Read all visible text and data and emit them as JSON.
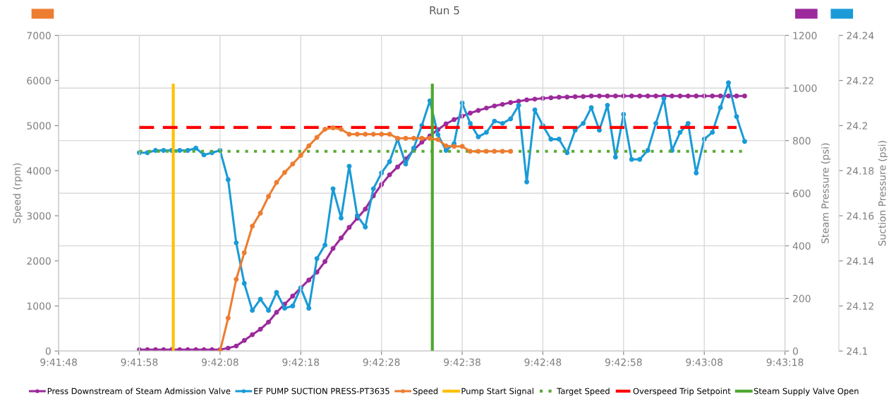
{
  "chart_data": {
    "type": "line",
    "title": "Run 5",
    "ylabel": "Speed (rpm)",
    "y2label": "Steam Pressure (psi)",
    "y3label": "Suction Pressure (psi)",
    "xlim": [
      9.696667,
      9.721667
    ],
    "xticks": [
      {
        "value": 9.696667,
        "label": "9:41:48"
      },
      {
        "value": 9.699444,
        "label": "9:41:58"
      },
      {
        "value": 9.702222,
        "label": "9:42:08"
      },
      {
        "value": 9.705,
        "label": "9:42:18"
      },
      {
        "value": 9.707778,
        "label": "9:42:28"
      },
      {
        "value": 9.710556,
        "label": "9:42:38"
      },
      {
        "value": 9.713333,
        "label": "9:42:48"
      },
      {
        "value": 9.716111,
        "label": "9:42:58"
      },
      {
        "value": 9.718889,
        "label": "9:43:08"
      },
      {
        "value": 9.721667,
        "label": "9:43:18"
      }
    ],
    "ylim": [
      0,
      7000
    ],
    "yticks": [
      0,
      1000,
      2000,
      3000,
      4000,
      5000,
      6000,
      7000
    ],
    "y2lim": [
      0,
      1200
    ],
    "y2ticks": [
      0,
      200,
      400,
      600,
      800,
      1000,
      1200
    ],
    "y3lim": [
      24.1,
      24.24
    ],
    "y3ticks": [
      24.1,
      24.12,
      24.14,
      24.16,
      24.18,
      24.2,
      24.22,
      24.24
    ],
    "grid": true,
    "legend": "bottom",
    "x": [
      9.699444,
      9.699722,
      9.7,
      9.700278,
      9.700556,
      9.700833,
      9.701111,
      9.701389,
      9.701667,
      9.701944,
      9.702222,
      9.7025,
      9.702778,
      9.703056,
      9.703333,
      9.703611,
      9.703889,
      9.704167,
      9.704444,
      9.704722,
      9.705,
      9.705278,
      9.705556,
      9.705833,
      9.706111,
      9.706389,
      9.706667,
      9.706944,
      9.707222,
      9.7075,
      9.707778,
      9.708056,
      9.708333,
      9.708611,
      9.708889,
      9.709167,
      9.709444,
      9.709722,
      9.71,
      9.710278,
      9.710556,
      9.710833,
      9.711111,
      9.711389,
      9.711667,
      9.711944,
      9.712222,
      9.7125,
      9.712778,
      9.713056,
      9.713333,
      9.713611,
      9.713889,
      9.714167,
      9.714444,
      9.714722,
      9.715,
      9.715278,
      9.715556,
      9.715833,
      9.716111,
      9.716389,
      9.716667,
      9.716944,
      9.717222,
      9.7175,
      9.717778,
      9.718056,
      9.718333,
      9.718611,
      9.718889,
      9.719167,
      9.719444,
      9.719722,
      9.72,
      9.720278
    ],
    "series": [
      {
        "name": "Press Downstream of Steam Admission Valve",
        "color": "#9c2a9c",
        "axis": "y2",
        "marker": "circle",
        "values": [
          5,
          5,
          5,
          5,
          5,
          5,
          5,
          5,
          5,
          5,
          5,
          11,
          19,
          40,
          62,
          83,
          110,
          147,
          178,
          209,
          240,
          270,
          300,
          340,
          390,
          430,
          470,
          505,
          540,
          590,
          633,
          670,
          700,
          730,
          765,
          794,
          818,
          842,
          864,
          880,
          893,
          905,
          915,
          924,
          932,
          938,
          945,
          950,
          955,
          958,
          961,
          963,
          965,
          966,
          967,
          968,
          970,
          970,
          970,
          970,
          970,
          970,
          970,
          970,
          970,
          970,
          970,
          970,
          970,
          970,
          970,
          970,
          970,
          970,
          970,
          970
        ]
      },
      {
        "name": "EF PUMP SUCTION PRESS-PT3635",
        "color": "#1a9bd7",
        "axis": "y3",
        "marker": "circle",
        "values": [
          24.188,
          24.188,
          24.189,
          24.189,
          24.189,
          24.189,
          24.189,
          24.19,
          24.187,
          24.188,
          24.189,
          24.176,
          24.148,
          24.13,
          24.118,
          24.123,
          24.118,
          24.126,
          24.119,
          24.12,
          24.128,
          24.119,
          24.141,
          24.147,
          24.172,
          24.159,
          24.182,
          24.16,
          24.155,
          24.172,
          24.179,
          24.184,
          24.194,
          24.183,
          24.19,
          24.2,
          24.211,
          24.196,
          24.189,
          24.192,
          24.21,
          24.201,
          24.195,
          24.197,
          24.202,
          24.201,
          24.203,
          24.209,
          24.175,
          24.207,
          24.2,
          24.194,
          24.194,
          24.188,
          24.198,
          24.201,
          24.208,
          24.198,
          24.209,
          24.186,
          24.205,
          24.185,
          24.185,
          24.189,
          24.201,
          24.212,
          24.189,
          24.197,
          24.201,
          24.179,
          24.194,
          24.197,
          24.208,
          24.219,
          24.204,
          24.193
        ]
      },
      {
        "name": "Speed",
        "color": "#ed7d31",
        "axis": "y",
        "marker": "circle",
        "x": [
          9.702222,
          9.7025,
          9.702778,
          9.703056,
          9.703333,
          9.703611,
          9.703889,
          9.704167,
          9.704444,
          9.704722,
          9.705,
          9.705278,
          9.705556,
          9.705833,
          9.706111,
          9.706389,
          9.706667,
          9.706944,
          9.707222,
          9.7075,
          9.707778,
          9.708056,
          9.708333,
          9.708611,
          9.708889,
          9.709167,
          9.709444,
          9.709722,
          9.71,
          9.710278,
          9.710556,
          9.710833,
          9.711111,
          9.711389,
          9.711667,
          9.711944,
          9.712222
        ],
        "values": [
          0,
          730,
          1590,
          2180,
          2770,
          3060,
          3430,
          3740,
          3960,
          4150,
          4340,
          4550,
          4740,
          4920,
          4950,
          4920,
          4810,
          4810,
          4810,
          4810,
          4810,
          4810,
          4720,
          4720,
          4720,
          4720,
          4720,
          4690,
          4550,
          4540,
          4540,
          4430,
          4430,
          4430,
          4430,
          4430,
          4430
        ]
      },
      {
        "name": "Pump Start Signal",
        "color": "#ffc000",
        "axis": "y",
        "marker": "none",
        "x": [
          9.700611,
          9.700611
        ],
        "values": [
          0,
          5900
        ]
      },
      {
        "name": "Target Speed",
        "color": "#5aab34",
        "axis": "y",
        "marker": "none",
        "line_style": "dotted",
        "x": [
          9.699444,
          9.720278
        ],
        "values": [
          4430,
          4430
        ]
      },
      {
        "name": "Overspeed Trip Setpoint",
        "color": "#ff0000",
        "axis": "y",
        "marker": "none",
        "line_style": "dashed",
        "x": [
          9.699444,
          9.72
        ],
        "values": [
          4960,
          4960
        ]
      },
      {
        "name": "Steam Supply Valve Open",
        "color": "#4ea72e",
        "axis": "y",
        "marker": "none",
        "x": [
          9.709528,
          9.709528
        ],
        "values": [
          0,
          5900
        ]
      }
    ]
  }
}
